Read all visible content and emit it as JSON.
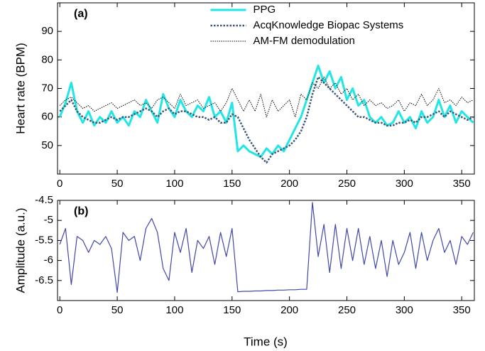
{
  "chart_data": [
    {
      "type": "line",
      "panel_label": "(a)",
      "y_label": "Heart rate (BPM)",
      "x": [
        0,
        5,
        10,
        15,
        20,
        25,
        30,
        35,
        40,
        45,
        50,
        55,
        60,
        65,
        70,
        75,
        80,
        85,
        90,
        95,
        100,
        105,
        110,
        115,
        120,
        125,
        130,
        135,
        140,
        145,
        150,
        155,
        160,
        165,
        170,
        175,
        180,
        185,
        190,
        195,
        200,
        205,
        210,
        215,
        220,
        225,
        230,
        235,
        240,
        245,
        250,
        255,
        260,
        265,
        270,
        275,
        280,
        285,
        290,
        295,
        300,
        305,
        310,
        315,
        320,
        325,
        330,
        335,
        340,
        345,
        350,
        355,
        360
      ],
      "series": [
        {
          "name": "PPG",
          "color": "#22e6e6",
          "linestyle": "solid",
          "values": [
            60,
            65,
            72,
            62,
            58,
            62,
            57,
            60,
            58,
            62,
            58,
            60,
            57,
            62,
            60,
            66,
            62,
            58,
            68,
            63,
            60,
            66,
            62,
            60,
            64,
            62,
            67,
            60,
            62,
            58,
            65,
            48,
            50,
            48,
            47,
            46,
            49,
            47,
            50,
            48,
            52,
            56,
            60,
            66,
            72,
            78,
            72,
            76,
            70,
            74,
            66,
            70,
            64,
            66,
            60,
            58,
            60,
            57,
            58,
            62,
            58,
            60,
            56,
            62,
            58,
            60,
            66,
            60,
            64,
            58,
            62,
            60,
            58
          ]
        },
        {
          "name": "AcqKnowledge Biopac Systems",
          "color": "#3b5878",
          "linestyle": "dotted",
          "values": [
            62,
            64,
            66,
            62,
            60,
            59,
            58,
            58,
            59,
            60,
            59,
            60,
            60,
            61,
            62,
            63,
            62,
            60,
            62,
            63,
            61,
            62,
            62,
            61,
            60,
            60,
            59,
            60,
            58,
            58,
            61,
            60,
            56,
            52,
            49,
            46,
            44,
            47,
            48,
            49,
            50,
            52,
            55,
            60,
            68,
            74,
            72,
            70,
            68,
            66,
            64,
            62,
            60,
            60,
            59,
            58,
            58,
            57,
            57,
            58,
            58,
            59,
            58,
            60,
            60,
            61,
            62,
            60,
            62,
            61,
            60,
            59,
            60
          ]
        },
        {
          "name": "AM-FM demodulation",
          "color": "#000000",
          "linestyle": "fine-dotted",
          "values": [
            64,
            66,
            67,
            65,
            63,
            64,
            62,
            63,
            64,
            65,
            63,
            64,
            65,
            66,
            64,
            65,
            63,
            66,
            67,
            65,
            63,
            68,
            64,
            65,
            66,
            63,
            64,
            65,
            62,
            65,
            70,
            66,
            62,
            66,
            62,
            68,
            60,
            66,
            62,
            64,
            66,
            60,
            68,
            66,
            72,
            70,
            74,
            70,
            72,
            68,
            70,
            66,
            68,
            64,
            66,
            64,
            65,
            63,
            64,
            66,
            62,
            65,
            64,
            68,
            64,
            66,
            70,
            65,
            66,
            64,
            67,
            65,
            66
          ]
        }
      ],
      "xlim": [
        -2,
        361
      ],
      "ylim": [
        40,
        100
      ],
      "xticks": [
        0,
        50,
        100,
        150,
        200,
        250,
        300,
        350
      ],
      "yticks": [
        50,
        60,
        70,
        80,
        90
      ],
      "legend": "upper center"
    },
    {
      "type": "line",
      "panel_label": "(b)",
      "y_label": "Amplitude (a.u.)",
      "x_label": "Time (s)",
      "x": [
        0,
        5,
        10,
        15,
        20,
        25,
        30,
        35,
        40,
        45,
        50,
        55,
        60,
        65,
        70,
        75,
        80,
        85,
        90,
        95,
        100,
        105,
        110,
        115,
        120,
        125,
        130,
        135,
        140,
        145,
        150,
        155,
        160,
        165,
        170,
        175,
        180,
        185,
        190,
        195,
        200,
        205,
        210,
        215,
        220,
        225,
        230,
        235,
        240,
        245,
        250,
        255,
        260,
        265,
        270,
        275,
        280,
        285,
        290,
        295,
        300,
        305,
        310,
        315,
        320,
        325,
        330,
        335,
        340,
        345,
        350,
        355,
        360
      ],
      "series": [
        {
          "color": "#4048a8",
          "values": [
            -5.6,
            -5.2,
            -6.6,
            -5.4,
            -5.5,
            -5.8,
            -5.5,
            -5.6,
            -5.4,
            -5.7,
            -6.8,
            -5.3,
            -5.5,
            -5.4,
            -6.0,
            -5.2,
            -4.95,
            -5.3,
            -6.2,
            -6.5,
            -5.3,
            -5.8,
            -5.2,
            -6.3,
            -5.5,
            -5.7,
            -5.4,
            -6.1,
            -5.3,
            -5.9,
            -5.2,
            -6.78,
            -6.77,
            -6.77,
            -6.76,
            -6.76,
            -6.75,
            -6.75,
            -6.74,
            -6.74,
            -6.73,
            -6.73,
            -6.72,
            -6.72,
            -4.55,
            -5.9,
            -5.1,
            -6.3,
            -5.1,
            -6.2,
            -5.2,
            -6.0,
            -5.2,
            -6.1,
            -5.4,
            -6.2,
            -5.5,
            -6.4,
            -5.5,
            -6.1,
            -5.8,
            -5.3,
            -6.2,
            -5.3,
            -6.0,
            -5.5,
            -5.2,
            -5.8,
            -5.5,
            -6.1,
            -5.4,
            -5.6,
            -5.3
          ]
        }
      ],
      "xlim": [
        -2,
        361
      ],
      "ylim": [
        -7,
        -4.5
      ],
      "xticks": [
        0,
        50,
        100,
        150,
        200,
        250,
        300,
        350
      ],
      "yticks": [
        -4.5,
        -5,
        -5.5,
        -6,
        -6.5
      ]
    }
  ]
}
